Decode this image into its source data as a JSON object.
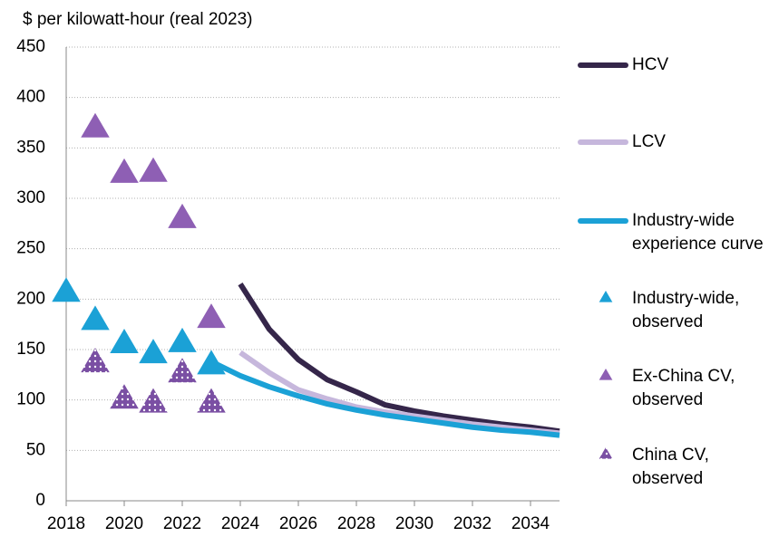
{
  "chart_data": {
    "type": "line",
    "y_label": "$ per kilowatt-hour (real 2023)",
    "xlim": [
      2018,
      2035
    ],
    "xticks": [
      2018,
      2020,
      2022,
      2024,
      2026,
      2028,
      2030,
      2032,
      2034
    ],
    "ylim": [
      0,
      450
    ],
    "yticks": [
      0,
      50,
      100,
      150,
      200,
      250,
      300,
      350,
      400,
      450
    ],
    "grid": true,
    "legend": "right",
    "series": [
      {
        "name": "HCV",
        "color": "#35264a",
        "style": "line",
        "x": [
          2024,
          2025,
          2026,
          2027,
          2028,
          2029,
          2030,
          2031,
          2032,
          2033,
          2034,
          2035
        ],
        "values": [
          215,
          170,
          140,
          120,
          108,
          95,
          89,
          84,
          80,
          76,
          73,
          69
        ]
      },
      {
        "name": "LCV",
        "color": "#c6b7dc",
        "style": "line",
        "x": [
          2024,
          2025,
          2026,
          2027,
          2028,
          2029,
          2030,
          2031,
          2032,
          2033,
          2034,
          2035
        ],
        "values": [
          147,
          127,
          110,
          101,
          93,
          88,
          84,
          80,
          76,
          73,
          70,
          67
        ]
      },
      {
        "name": "Industry-wide experience curve",
        "color": "#1ba1d6",
        "style": "line",
        "x": [
          2023,
          2024,
          2025,
          2026,
          2027,
          2028,
          2029,
          2030,
          2031,
          2032,
          2033,
          2034,
          2035
        ],
        "values": [
          138,
          124,
          113,
          104,
          96,
          90,
          85,
          81,
          77,
          73,
          70,
          68,
          65
        ]
      },
      {
        "name": "Industry-wide, observed",
        "color": "#1ba1d6",
        "style": "triangle",
        "x": [
          2018,
          2019,
          2020,
          2021,
          2022,
          2023
        ],
        "values": [
          210,
          182,
          159,
          149,
          160,
          138
        ]
      },
      {
        "name": "Ex-China CV, observed",
        "color": "#8e5fb4",
        "style": "triangle",
        "x": [
          2019,
          2020,
          2021,
          2022,
          2023
        ],
        "values": [
          373,
          328,
          329,
          283,
          184
        ]
      },
      {
        "name": "China CV, observed",
        "color": "#7a4fa3",
        "style": "dotted-triangle",
        "x": [
          2019,
          2020,
          2021,
          2022,
          2023
        ],
        "values": [
          140,
          104,
          100,
          130,
          100
        ]
      }
    ]
  }
}
